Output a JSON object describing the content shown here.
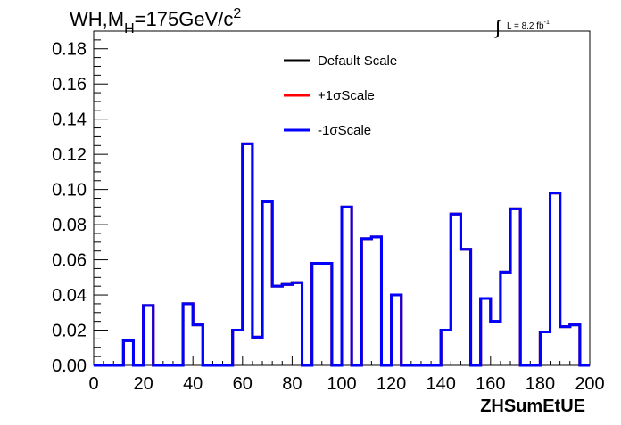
{
  "chart_data": {
    "type": "line",
    "title_main": "WH,M",
    "title_sub": "H",
    "title_rest": "=175GeV/c",
    "title_sup": "2",
    "lumi_label": "L = 8.2 fb",
    "lumi_sup": "-1",
    "xlabel": "ZHSumEtUE",
    "xlim": [
      0,
      200
    ],
    "ylim": [
      0,
      0.19
    ],
    "x_ticks": [
      "0",
      "20",
      "40",
      "60",
      "80",
      "100",
      "120",
      "140",
      "160",
      "180",
      "200"
    ],
    "y_ticks": [
      "0.00",
      "0.02",
      "0.04",
      "0.06",
      "0.08",
      "0.10",
      "0.12",
      "0.14",
      "0.16",
      "0.18"
    ],
    "legend_position": "top-right",
    "bin_width": 4,
    "series": [
      {
        "name": "Default Scale",
        "color": "#000000",
        "values": [
          0,
          0,
          0,
          0.014,
          0,
          0.034,
          0,
          0,
          0,
          0.035,
          0.023,
          0,
          0,
          0,
          0.02,
          0.126,
          0.016,
          0.093,
          0.045,
          0.046,
          0.047,
          0,
          0.058,
          0.058,
          0,
          0.09,
          0,
          0.072,
          0.073,
          0,
          0.04,
          0,
          0,
          0,
          0,
          0.02,
          0.086,
          0.066,
          0,
          0.038,
          0.025,
          0.053,
          0.089,
          0,
          0,
          0.019,
          0.098,
          0.022,
          0.023,
          0.0
        ]
      },
      {
        "name": "+1σScale",
        "color": "#ff0000",
        "values": [
          0,
          0,
          0,
          0.014,
          0,
          0.034,
          0,
          0,
          0,
          0.035,
          0.023,
          0,
          0,
          0,
          0.02,
          0.126,
          0.016,
          0.093,
          0.045,
          0.046,
          0.047,
          0,
          0.058,
          0.058,
          0,
          0.09,
          0,
          0.072,
          0.073,
          0,
          0.04,
          0,
          0,
          0,
          0,
          0.02,
          0.086,
          0.066,
          0,
          0.038,
          0.025,
          0.053,
          0.089,
          0,
          0,
          0.019,
          0.098,
          0.022,
          0.023,
          0.0
        ]
      },
      {
        "name": "-1σScale",
        "color": "#0000ff",
        "values": [
          0,
          0,
          0,
          0.014,
          0,
          0.034,
          0,
          0,
          0,
          0.035,
          0.023,
          0,
          0,
          0,
          0.02,
          0.126,
          0.016,
          0.093,
          0.045,
          0.046,
          0.047,
          0,
          0.058,
          0.058,
          0,
          0.09,
          0,
          0.072,
          0.073,
          0,
          0.04,
          0,
          0,
          0,
          0,
          0.02,
          0.086,
          0.066,
          0,
          0.038,
          0.025,
          0.053,
          0.089,
          0,
          0,
          0.019,
          0.098,
          0.022,
          0.023,
          0.0
        ]
      }
    ]
  }
}
